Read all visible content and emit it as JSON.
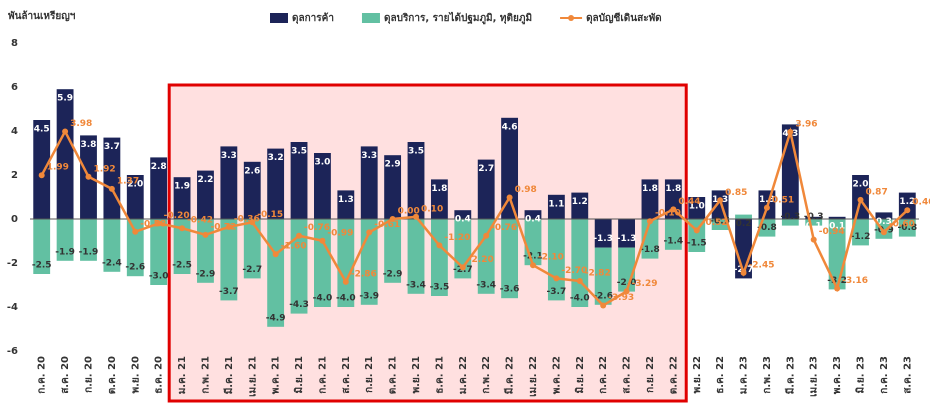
{
  "chart_data": {
    "type": "bar",
    "ylabel": "พันล้านเหรียญฯ",
    "categories": [
      "ก.ค. 20",
      "ส.ค. 20",
      "ก.ย. 20",
      "ต.ค. 20",
      "พ.ย. 20",
      "ธ.ค. 20",
      "ม.ค. 21",
      "ก.พ. 21",
      "มี.ค. 21",
      "เม.ย. 21",
      "พ.ค. 21",
      "มิ.ย. 21",
      "ก.ค. 21",
      "ส.ค. 21",
      "ก.ย. 21",
      "ต.ค. 21",
      "พ.ย. 21",
      "ธ.ค. 21",
      "ม.ค. 22",
      "ก.พ. 22",
      "มี.ค. 22",
      "เม.ย. 22",
      "พ.ค. 22",
      "มิ.ย. 22",
      "ก.ค. 22",
      "ส.ค. 22",
      "ก.ย. 22",
      "ต.ค. 22",
      "พ.ย. 22",
      "ธ.ค. 22",
      "ม.ค. 23",
      "ก.พ. 23",
      "มี.ค. 23",
      "เม.ย. 23",
      "พ.ค. 23",
      "มิ.ย. 23",
      "ก.ค. 23",
      "ส.ค. 23"
    ],
    "series": [
      {
        "name": "ดุลการค้า",
        "type": "bar",
        "color": "#1c2458",
        "values": [
          4.5,
          5.9,
          3.8,
          3.7,
          2.0,
          2.8,
          1.9,
          2.2,
          3.3,
          2.6,
          3.2,
          3.5,
          3.0,
          1.3,
          3.3,
          2.9,
          3.5,
          1.8,
          0.4,
          2.7,
          4.6,
          0.4,
          1.1,
          1.2,
          -1.3,
          -1.3,
          1.8,
          1.8,
          1.0,
          1.3,
          -2.7,
          1.3,
          4.3,
          0.1,
          0.1,
          2.0,
          0.3,
          1.2
        ],
        "value_labels": [
          "4.5",
          "5.9",
          "3.8",
          "3.7",
          "2.0",
          "2.8",
          "1.9",
          "2.2",
          "3.3",
          "2.6",
          "3.2",
          "3.5",
          "3.0",
          "1.3",
          "3.3",
          "2.9",
          "3.5",
          "1.8",
          "0.4",
          "2.7",
          "4.6",
          "0.4",
          "1.1",
          "1.2",
          "-1.3",
          "-1.3",
          "1.8",
          "1.8",
          "1.0",
          "1.3",
          "-2.7",
          "1.3",
          "4.3",
          "0.1",
          "0.1",
          "2.0",
          "0.3",
          "1.2"
        ]
      },
      {
        "name": "ดุลบริการ, รายได้ปฐมภูมิ, ทุติยภูมิ",
        "type": "bar",
        "color": "#62c0a2",
        "values": [
          -2.5,
          -1.9,
          -1.9,
          -2.4,
          -2.6,
          -3.0,
          -2.5,
          -2.9,
          -3.7,
          -2.7,
          -4.9,
          -4.3,
          -4.0,
          -4.0,
          -3.9,
          -2.9,
          -3.4,
          -3.5,
          -2.7,
          -3.4,
          -3.6,
          -2.1,
          -3.7,
          -4.0,
          -2.6,
          -2.0,
          -1.8,
          -1.4,
          -1.5,
          -0.5,
          0.2,
          -0.8,
          -0.3,
          -0.3,
          -3.2,
          -1.2,
          -0.9,
          -0.8
        ],
        "value_labels": [
          "-2.5",
          "-1.9",
          "-1.9",
          "-2.4",
          "-2.6",
          "-3.0",
          "-2.5",
          "-2.9",
          "-3.7",
          "-2.7",
          "-4.9",
          "-4.3",
          "-4.0",
          "-4.0",
          "-3.9",
          "-2.9",
          "-3.4",
          "-3.5",
          "-2.7",
          "-3.4",
          "-3.6",
          "-2.1",
          "-3.7",
          "-4.0",
          "-2.6",
          "-2.0",
          "-1.8",
          "-1.4",
          "-1.5",
          "-0.5",
          "0.2",
          "-0.8",
          "-0.3",
          "-0.3",
          "-3.2",
          "-1.2",
          "-0.9",
          "-0.8"
        ]
      },
      {
        "name": "ดุลบัญชีเดินสะพัด",
        "type": "line",
        "color": "#f0883a",
        "values": [
          1.99,
          3.98,
          1.92,
          1.37,
          -0.58,
          -0.2,
          -0.42,
          -0.72,
          -0.36,
          -0.15,
          -1.6,
          -0.76,
          -0.99,
          -2.86,
          -0.61,
          0.0,
          0.1,
          -1.2,
          -2.2,
          -0.76,
          0.98,
          -2.1,
          -2.7,
          -2.82,
          -3.93,
          -3.29,
          -0.1,
          0.44,
          -0.52,
          0.85,
          -2.45,
          0.51,
          3.96,
          -0.94,
          -3.16,
          0.87,
          -0.6,
          0.4
        ],
        "value_labels": [
          "1.99",
          "3.98",
          "1.92",
          "1.37",
          "-0.58",
          "-0.20",
          "-0.42",
          "-0.72",
          "-0.36",
          "-0.15",
          "-1.60",
          "-0.76",
          "-0.99",
          "-2.86",
          "-0.61",
          "0.00",
          "0.10",
          "-1.20",
          "-2.20",
          "-0.76",
          "0.98",
          "-2.10",
          "-2.70",
          "-2.82",
          "-3.93",
          "-3.29",
          "-0.10",
          "0.44",
          "-0.52",
          "0.85",
          "-2.45",
          "0.51",
          "3.96",
          "-0.94",
          "-3.16",
          "0.87",
          "-0.60",
          "0.40"
        ]
      }
    ],
    "ylim": [
      -6,
      8
    ],
    "yticks": [
      -6,
      -4,
      -2,
      0,
      2,
      4,
      6,
      8
    ],
    "grid": false,
    "legend": "top"
  }
}
